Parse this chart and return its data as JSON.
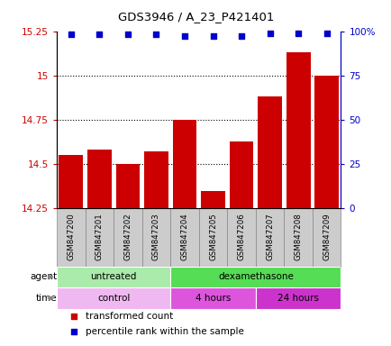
{
  "title": "GDS3946 / A_23_P421401",
  "samples": [
    "GSM847200",
    "GSM847201",
    "GSM847202",
    "GSM847203",
    "GSM847204",
    "GSM847205",
    "GSM847206",
    "GSM847207",
    "GSM847208",
    "GSM847209"
  ],
  "bar_values": [
    14.55,
    14.58,
    14.5,
    14.57,
    14.75,
    14.35,
    14.63,
    14.88,
    15.13,
    15.0
  ],
  "percentile_values": [
    98,
    98,
    98,
    98,
    97,
    97,
    97,
    99,
    99,
    99
  ],
  "bar_color": "#cc0000",
  "dot_color": "#0000cc",
  "ylim_left": [
    14.25,
    15.25
  ],
  "ylim_right": [
    0,
    100
  ],
  "yticks_left": [
    14.25,
    14.5,
    14.75,
    15.0,
    15.25
  ],
  "yticks_right": [
    0,
    25,
    50,
    75,
    100
  ],
  "ytick_labels_left": [
    "14.25",
    "14.5",
    "14.75",
    "15",
    "15.25"
  ],
  "ytick_labels_right": [
    "0",
    "25",
    "50",
    "75",
    "100%"
  ],
  "agent_groups": [
    {
      "label": "untreated",
      "start": 0,
      "end": 4,
      "color": "#aaeaaa"
    },
    {
      "label": "dexamethasone",
      "start": 4,
      "end": 10,
      "color": "#55dd55"
    }
  ],
  "time_groups": [
    {
      "label": "control",
      "start": 0,
      "end": 4,
      "color": "#f0b8f0"
    },
    {
      "label": "4 hours",
      "start": 4,
      "end": 7,
      "color": "#dd55dd"
    },
    {
      "label": "24 hours",
      "start": 7,
      "end": 10,
      "color": "#cc33cc"
    }
  ],
  "legend_items": [
    {
      "label": "transformed count",
      "color": "#cc0000"
    },
    {
      "label": "percentile rank within the sample",
      "color": "#0000cc"
    }
  ],
  "xlabel_box_color": "#cccccc",
  "xlabel_box_edge": "#888888",
  "grid_dotted_color": "#000000"
}
